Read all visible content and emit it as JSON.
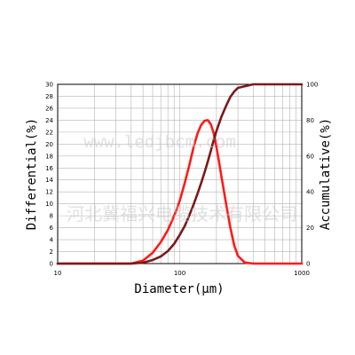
{
  "chart_data": {
    "type": "line",
    "xlabel": "Diameter(μm)",
    "ylabel_left": "Differential(%)",
    "ylabel_right": "Accumulative(%)",
    "x_scale": "log",
    "xlim": [
      10,
      1000
    ],
    "ylim_left": [
      0,
      30
    ],
    "ylim_right": [
      0,
      100
    ],
    "grid": true,
    "x_tick_labels": [
      "10",
      "100",
      "1000"
    ],
    "y_left_tick_labels": [
      "0",
      "2",
      "4",
      "6",
      "8",
      "10",
      "12",
      "14",
      "16",
      "18",
      "20",
      "22",
      "24",
      "26",
      "28",
      "30"
    ],
    "y_right_tick_labels": [
      "0",
      "20",
      "40",
      "60",
      "80",
      "100"
    ],
    "series": [
      {
        "axis": "left",
        "color": "#ff1a1a",
        "x": [
          40,
          50,
          60,
          70,
          80,
          90,
          100,
          110,
          120,
          130,
          140,
          150,
          160,
          170,
          180,
          190,
          200,
          210,
          220,
          240,
          260,
          280,
          300,
          340,
          400
        ],
        "y": [
          0,
          0.5,
          1.8,
          3.6,
          5.6,
          8.0,
          10.5,
          13.5,
          16.5,
          19.5,
          21.8,
          23.2,
          23.9,
          24.0,
          23.3,
          21.8,
          19.5,
          17.0,
          14.5,
          10.0,
          6.0,
          3.0,
          1.3,
          0.2,
          0
        ]
      },
      {
        "axis": "right",
        "color": "#7a1a1a",
        "x": [
          40,
          50,
          60,
          70,
          80,
          90,
          100,
          110,
          120,
          130,
          140,
          150,
          160,
          170,
          180,
          190,
          200,
          220,
          240,
          260,
          280,
          300,
          400,
          1000
        ],
        "y": [
          0,
          0.5,
          2,
          4,
          7,
          11,
          16,
          21,
          27,
          33,
          39,
          45,
          51,
          57,
          63,
          69,
          74,
          82,
          88,
          93,
          96,
          98,
          100,
          100
        ]
      }
    ]
  },
  "watermark": {
    "line1": "www.ledjbcm.com",
    "line2": "河北冀福兴电缆技术有限公司"
  }
}
